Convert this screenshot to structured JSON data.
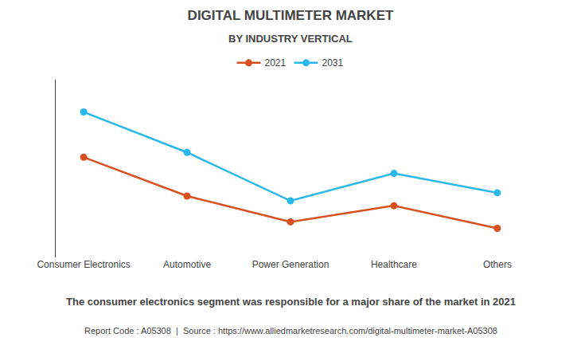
{
  "chart_data": {
    "type": "line",
    "title": "DIGITAL MULTIMETER MARKET",
    "subtitle": "BY INDUSTRY VERTICAL",
    "categories": [
      "Consumer Electronics",
      "Automotive",
      "Power Generation",
      "Healthcare",
      "Others"
    ],
    "series": [
      {
        "name": "2021",
        "color": "#d94f1e",
        "values": [
          62,
          38,
          22,
          32,
          18
        ]
      },
      {
        "name": "2031",
        "color": "#29b8e8",
        "values": [
          90,
          65,
          35,
          52,
          40
        ]
      }
    ],
    "ylim": [
      0,
      110
    ],
    "yticks": [],
    "grid": false,
    "legend": "top",
    "tick_labels": "x",
    "marker": "circle",
    "annotations": [
      "The consumer electronics segment was responsible for a major share of the market in 2021",
      "Report Code : A05308  |  Source : https://www.alliedmarketresearch.com/digital-multimeter-market-A05308"
    ]
  }
}
